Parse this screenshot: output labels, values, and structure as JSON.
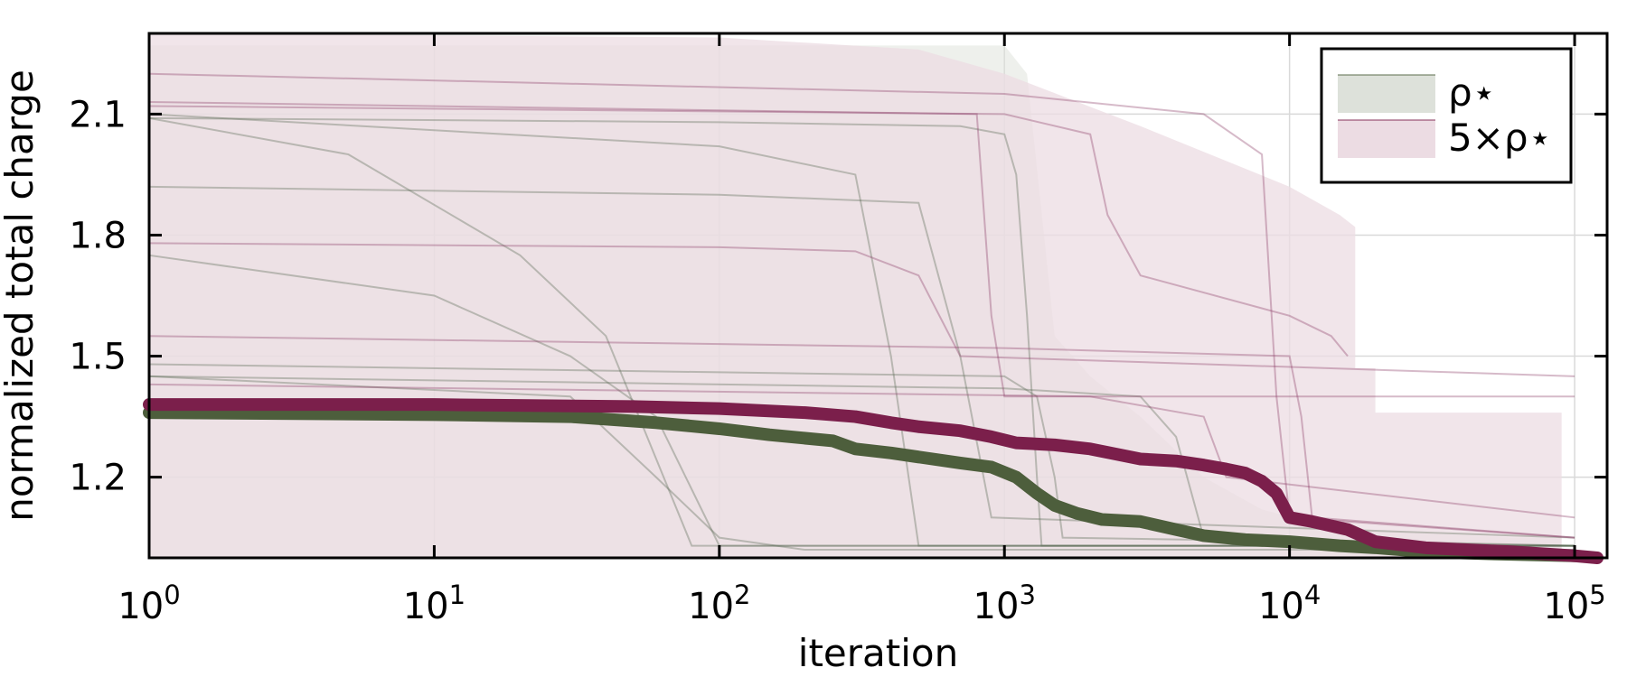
{
  "chart_data": {
    "type": "line",
    "xlabel": "iteration",
    "ylabel": "normalized total charge",
    "xscale": "log10",
    "xlim": [
      1,
      130000
    ],
    "ylim": [
      1.0,
      2.3
    ],
    "grid": true,
    "legend_position": "top-right",
    "x_ticks": [
      {
        "value": 1,
        "base": "10",
        "exp": "0"
      },
      {
        "value": 10,
        "base": "10",
        "exp": "1"
      },
      {
        "value": 100,
        "base": "10",
        "exp": "2"
      },
      {
        "value": 1000,
        "base": "10",
        "exp": "3"
      },
      {
        "value": 10000,
        "base": "10",
        "exp": "4"
      },
      {
        "value": 100000,
        "base": "10",
        "exp": "5"
      }
    ],
    "y_ticks": [
      {
        "value": 1.2,
        "label": "1.2"
      },
      {
        "value": 1.5,
        "label": "1.5"
      },
      {
        "value": 1.8,
        "label": "1.8"
      },
      {
        "value": 2.1,
        "label": "2.1"
      }
    ],
    "series": [
      {
        "name": "ρ⋆",
        "color": "#4d5e3c",
        "band_color": "#dde1da",
        "band_opacity": 0.5,
        "band": {
          "x": [
            1,
            1000,
            1200,
            1500,
            2000,
            3000,
            5000,
            8000,
            15000,
            30000,
            60000,
            90000
          ],
          "upper": [
            2.27,
            2.27,
            2.2,
            1.55,
            1.45,
            1.35,
            1.2,
            1.12,
            1.07,
            1.06,
            1.05,
            1.05
          ],
          "lower": [
            1.0,
            1.0,
            1.0,
            1.0,
            1.0,
            1.0,
            1.0,
            1.0,
            1.0,
            1.0,
            1.0,
            1.0
          ]
        },
        "mean": {
          "x": [
            1,
            10,
            30,
            60,
            100,
            150,
            250,
            300,
            400,
            500,
            700,
            900,
            1100,
            1300,
            1500,
            1800,
            2200,
            3000,
            4000,
            5000,
            7000,
            10000,
            15000,
            20000,
            30000,
            50000,
            100000
          ],
          "y": [
            1.36,
            1.355,
            1.35,
            1.335,
            1.32,
            1.305,
            1.29,
            1.27,
            1.26,
            1.25,
            1.235,
            1.225,
            1.2,
            1.16,
            1.13,
            1.11,
            1.095,
            1.09,
            1.07,
            1.055,
            1.045,
            1.04,
            1.03,
            1.025,
            1.015,
            1.01,
            1.005
          ]
        }
      },
      {
        "name": "5×ρ⋆",
        "color": "#7b1f4b",
        "band_color": "#ecdce3",
        "band_opacity": 0.75,
        "band": {
          "x": [
            1,
            100,
            500,
            1000,
            3000,
            10000,
            15000,
            17000,
            17000,
            20000,
            20000,
            90000,
            90000,
            120000
          ],
          "upper": [
            2.3,
            2.29,
            2.26,
            2.2,
            2.07,
            1.92,
            1.85,
            1.82,
            1.47,
            1.47,
            1.36,
            1.36,
            1.02,
            1.01
          ],
          "lower": [
            1.0,
            1.0,
            1.0,
            1.0,
            1.0,
            1.0,
            1.0,
            1.0,
            1.0,
            1.0,
            1.0,
            1.0,
            1.0,
            1.0
          ]
        },
        "mean": {
          "x": [
            1,
            10,
            50,
            100,
            200,
            300,
            400,
            500,
            700,
            900,
            1100,
            1500,
            2000,
            3000,
            4000,
            5000,
            6000,
            7000,
            8000,
            9000,
            10000,
            12000,
            16000,
            20000,
            30000,
            60000,
            100000,
            120000
          ],
          "y": [
            1.38,
            1.38,
            1.375,
            1.37,
            1.36,
            1.35,
            1.335,
            1.325,
            1.315,
            1.3,
            1.285,
            1.28,
            1.27,
            1.245,
            1.24,
            1.23,
            1.22,
            1.21,
            1.19,
            1.16,
            1.1,
            1.09,
            1.07,
            1.04,
            1.025,
            1.015,
            1.005,
            1.0
          ]
        }
      }
    ],
    "individual_runs": {
      "color_green": "#556650",
      "color_purple": "#8a3a63",
      "opacity": 0.35,
      "runs": [
        {
          "group": "green",
          "x": [
            1,
            100,
            700,
            1000,
            1100,
            1200,
            1300,
            1350,
            100000
          ],
          "y": [
            2.09,
            2.08,
            2.07,
            2.05,
            1.95,
            1.6,
            1.2,
            1.03,
            1.03
          ]
        },
        {
          "group": "green",
          "x": [
            1,
            100,
            300,
            400,
            500,
            100000
          ],
          "y": [
            2.1,
            2.02,
            1.95,
            1.5,
            1.03,
            1.03
          ]
        },
        {
          "group": "green",
          "x": [
            1,
            5,
            20,
            40,
            80,
            100000
          ],
          "y": [
            2.09,
            2.0,
            1.75,
            1.55,
            1.03,
            1.03
          ]
        },
        {
          "group": "green",
          "x": [
            1,
            10,
            30,
            60,
            100,
            100000
          ],
          "y": [
            1.75,
            1.65,
            1.5,
            1.35,
            1.03,
            1.03
          ]
        },
        {
          "group": "green",
          "x": [
            1,
            100,
            500,
            700,
            900,
            100000
          ],
          "y": [
            1.92,
            1.9,
            1.88,
            1.5,
            1.1,
            1.05
          ]
        },
        {
          "group": "green",
          "x": [
            1,
            1000,
            1300,
            1500,
            1600,
            100000
          ],
          "y": [
            1.48,
            1.45,
            1.4,
            1.2,
            1.05,
            1.03
          ]
        },
        {
          "group": "green",
          "x": [
            1,
            1000,
            3000,
            4000,
            5000,
            100000
          ],
          "y": [
            1.45,
            1.42,
            1.4,
            1.3,
            1.05,
            1.03
          ]
        },
        {
          "group": "green",
          "x": [
            1,
            30,
            60,
            100,
            200,
            100000
          ],
          "y": [
            1.45,
            1.4,
            1.2,
            1.05,
            1.02,
            1.02
          ]
        },
        {
          "group": "purple",
          "x": [
            1,
            1000,
            2000,
            2300,
            3000,
            10000,
            14000,
            16000
          ],
          "y": [
            2.12,
            2.1,
            2.05,
            1.85,
            1.7,
            1.6,
            1.55,
            1.5
          ]
        },
        {
          "group": "purple",
          "x": [
            1,
            800,
            900,
            1000,
            100000
          ],
          "y": [
            2.13,
            2.1,
            1.6,
            1.4,
            1.4
          ]
        },
        {
          "group": "purple",
          "x": [
            1,
            1000,
            5000,
            8000,
            9000,
            10000,
            100000
          ],
          "y": [
            2.2,
            2.15,
            2.1,
            2.0,
            1.4,
            1.1,
            1.05
          ]
        },
        {
          "group": "purple",
          "x": [
            1,
            100,
            300,
            500,
            700,
            100000
          ],
          "y": [
            1.78,
            1.77,
            1.76,
            1.7,
            1.5,
            1.45
          ]
        },
        {
          "group": "purple",
          "x": [
            1,
            1000,
            10000,
            11000,
            12000,
            100000
          ],
          "y": [
            1.55,
            1.52,
            1.5,
            1.35,
            1.1,
            1.05
          ]
        },
        {
          "group": "purple",
          "x": [
            1,
            2000,
            5000,
            6000,
            100000
          ],
          "y": [
            1.43,
            1.4,
            1.35,
            1.2,
            1.1
          ]
        }
      ]
    }
  }
}
